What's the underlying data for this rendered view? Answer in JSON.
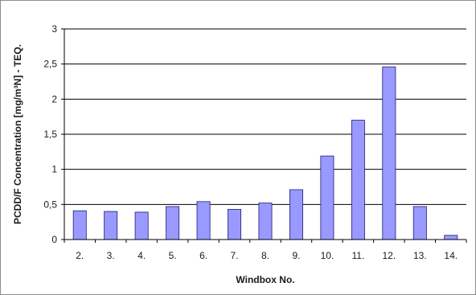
{
  "chart_data": {
    "type": "bar",
    "title": "",
    "xlabel": "Windbox No.",
    "ylabel": "PCDD/F Concentration [mg/m³N] - TEQ.",
    "categories": [
      "2.",
      "3.",
      "4.",
      "5.",
      "6.",
      "7.",
      "8.",
      "9.",
      "10.",
      "11.",
      "12.",
      "13.",
      "14."
    ],
    "values": [
      0.41,
      0.4,
      0.39,
      0.47,
      0.54,
      0.43,
      0.52,
      0.71,
      1.19,
      1.7,
      2.46,
      0.47,
      0.06
    ],
    "ylim": [
      0,
      3
    ],
    "yticks": [
      0,
      0.5,
      1,
      1.5,
      2,
      2.5,
      3
    ],
    "ytick_labels": [
      "0",
      "0,5",
      "1",
      "1,5",
      "2",
      "2,5",
      "3"
    ],
    "grid": true,
    "legend": "none",
    "colors": {
      "bar_fill": "#9999ff",
      "bar_stroke": "#1c1c7a",
      "gridline": "#000000",
      "axis": "#000000"
    }
  }
}
